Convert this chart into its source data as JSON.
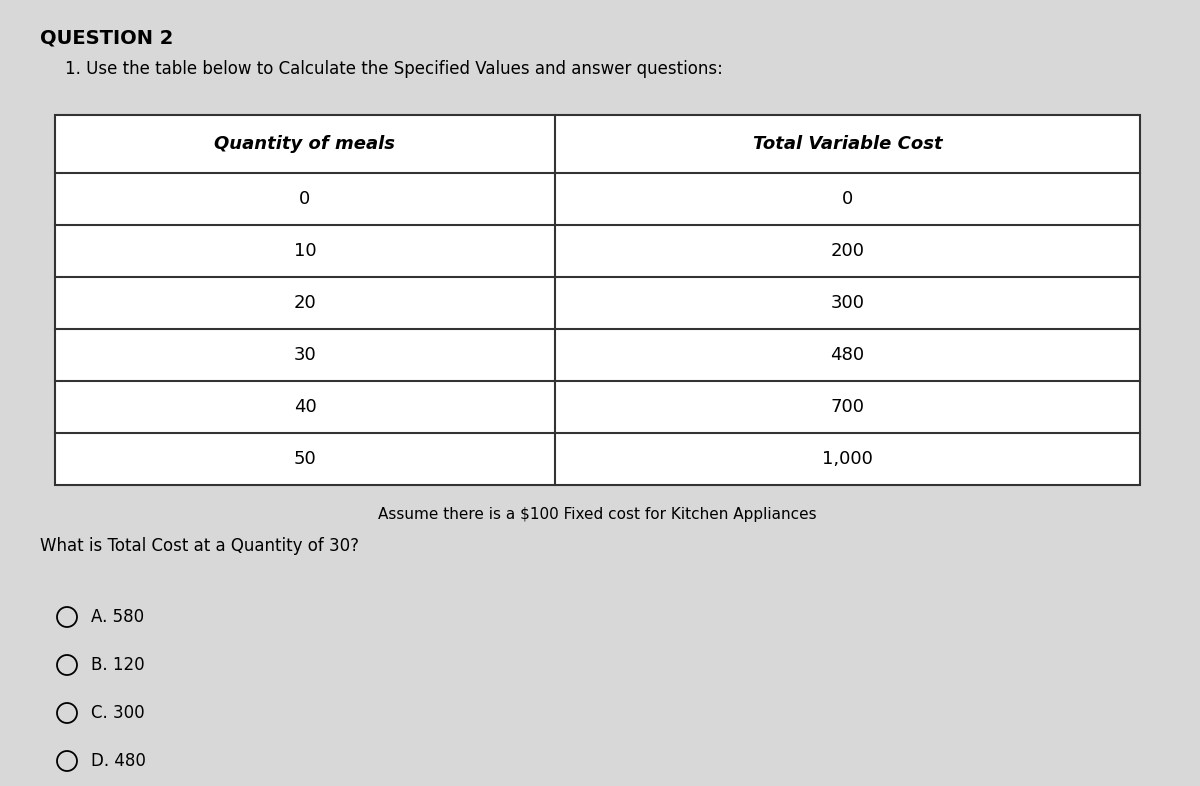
{
  "question_label": "QUESTION 2",
  "instruction": "1. Use the table below to Calculate the Specified Values and answer questions:",
  "col1_header": "Quantity of meals",
  "col2_header": "Total Variable Cost",
  "table_data": [
    [
      "0",
      "0"
    ],
    [
      "10",
      "200"
    ],
    [
      "20",
      "300"
    ],
    [
      "30",
      "480"
    ],
    [
      "40",
      "700"
    ],
    [
      "50",
      "1,000"
    ]
  ],
  "note": "Assume there is a $100 Fixed cost for Kitchen Appliances",
  "question": "What is Total Cost at a Quantity of 30?",
  "options": [
    "A. 580",
    "B. 120",
    "C. 300",
    "D. 480"
  ],
  "bg_color": "#d8d8d8",
  "table_border_color": "#333333",
  "question_label_fontsize": 14,
  "instruction_fontsize": 12,
  "header_fontsize": 13,
  "data_fontsize": 13,
  "note_fontsize": 11,
  "question_fontsize": 12,
  "option_fontsize": 12
}
